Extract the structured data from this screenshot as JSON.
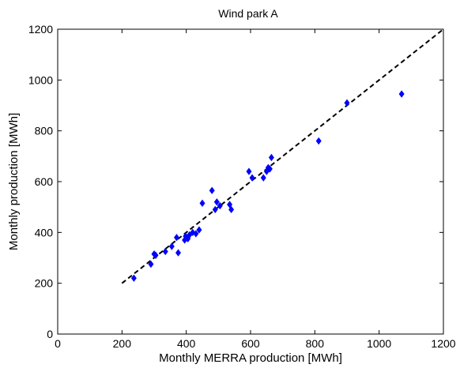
{
  "chart_data": {
    "type": "scatter",
    "title": "Wind park A",
    "xlabel": "Monthly MERRA production [MWh]",
    "ylabel": "Monthly production [MWh]",
    "xlim": [
      0,
      1200
    ],
    "ylim": [
      0,
      1200
    ],
    "xticks": [
      "0",
      "200",
      "400",
      "600",
      "800",
      "1000",
      "1200"
    ],
    "yticks": [
      "0",
      "200",
      "400",
      "600",
      "800",
      "1000",
      "1200"
    ],
    "grid": false,
    "marker_color": "#0000ff",
    "reference_line": {
      "style": "dashed",
      "color": "#000000",
      "x": [
        200,
        1200
      ],
      "y": [
        200,
        1200
      ]
    },
    "series": [
      {
        "points": [
          [
            237,
            220
          ],
          [
            290,
            275
          ],
          [
            300,
            315
          ],
          [
            305,
            310
          ],
          [
            335,
            325
          ],
          [
            355,
            345
          ],
          [
            370,
            380
          ],
          [
            375,
            320
          ],
          [
            395,
            370
          ],
          [
            398,
            385
          ],
          [
            405,
            375
          ],
          [
            410,
            390
          ],
          [
            420,
            400
          ],
          [
            430,
            395
          ],
          [
            440,
            410
          ],
          [
            450,
            515
          ],
          [
            480,
            565
          ],
          [
            490,
            490
          ],
          [
            495,
            520
          ],
          [
            505,
            505
          ],
          [
            535,
            510
          ],
          [
            540,
            490
          ],
          [
            595,
            640
          ],
          [
            605,
            615
          ],
          [
            640,
            615
          ],
          [
            650,
            640
          ],
          [
            655,
            655
          ],
          [
            660,
            650
          ],
          [
            665,
            695
          ],
          [
            812,
            760
          ],
          [
            900,
            910
          ],
          [
            1070,
            945
          ]
        ]
      }
    ]
  }
}
